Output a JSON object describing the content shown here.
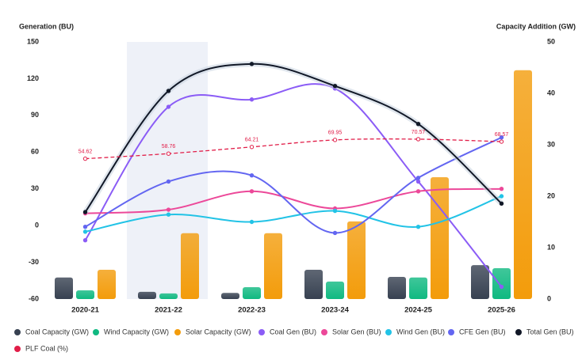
{
  "chart_data": {
    "type": "combo",
    "y_label": "Generation (BU)",
    "y2_label": "Capacity Addition (GW)",
    "categories": [
      "2020-21",
      "2021-22",
      "2022-23",
      "2023-24",
      "2024-25",
      "2025-26"
    ],
    "ylim": [
      -60,
      150
    ],
    "yticks": [
      150,
      120,
      90,
      60,
      30,
      0,
      -30,
      -60
    ],
    "y2lim": [
      0,
      50
    ],
    "y2ticks": [
      50,
      40,
      30,
      20,
      10,
      0
    ],
    "series": [
      {
        "name": "Coal Capacity (GW)",
        "type": "bar",
        "axis": "y2",
        "color": "#374151",
        "values": [
          4.2,
          1.4,
          1.2,
          5.7,
          4.3,
          6.6
        ]
      },
      {
        "name": "Wind Capacity (GW)",
        "type": "bar",
        "axis": "y2",
        "color": "#10b981",
        "values": [
          1.7,
          1.1,
          2.3,
          3.4,
          4.2,
          6.0
        ]
      },
      {
        "name": "Solar Capacity (GW)",
        "type": "bar",
        "axis": "y2",
        "color": "#f39c0b",
        "values": [
          5.7,
          12.8,
          12.8,
          15.1,
          23.7,
          44.5
        ]
      },
      {
        "name": "Coal Gen (BU)",
        "type": "line",
        "color": "#8b5cf6",
        "values": [
          -12,
          97,
          103,
          112,
          36,
          -50
        ]
      },
      {
        "name": "Solar Gen (BU)",
        "type": "line",
        "color": "#ec4899",
        "values": [
          10,
          13,
          28,
          14,
          28,
          30
        ]
      },
      {
        "name": "Wind Gen (BU)",
        "type": "line",
        "color": "#22c3e6",
        "values": [
          -5,
          9,
          3,
          12,
          -1,
          24
        ]
      },
      {
        "name": "CFE Gen (BU)",
        "type": "line",
        "color": "#6366f1",
        "values": [
          -1,
          36,
          41,
          -6,
          39,
          72
        ]
      },
      {
        "name": "Total Gen (BU)",
        "type": "line",
        "color": "#111827",
        "values": [
          11,
          110,
          132,
          114,
          83,
          18
        ]
      },
      {
        "name": "PLF Coal (%)",
        "type": "line",
        "dashed": true,
        "labels": true,
        "color": "#e11d48",
        "values": [
          54.62,
          58.76,
          64.21,
          69.95,
          70.57,
          68.57
        ]
      }
    ]
  }
}
